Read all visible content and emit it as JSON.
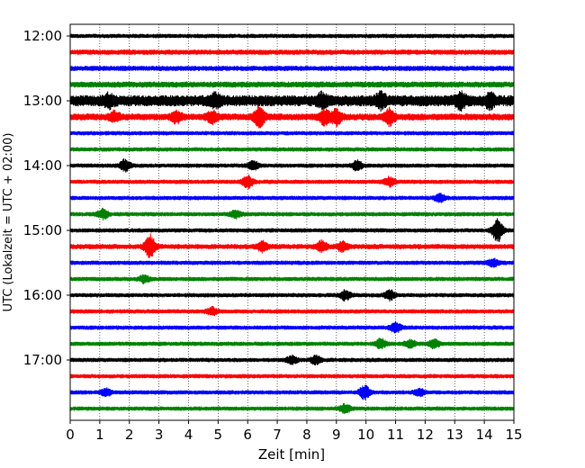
{
  "chart_data": {
    "type": "line",
    "subtype": "helicorder",
    "xlabel": "Zeit  [min]",
    "ylabel": "UTC (Lokalzeit = UTC + 02:00)",
    "xlim": [
      0,
      15
    ],
    "x_ticks": [
      "0",
      "1",
      "2",
      "3",
      "4",
      "5",
      "6",
      "7",
      "8",
      "9",
      "10",
      "11",
      "12",
      "13",
      "14",
      "15"
    ],
    "y_tick_labels": [
      "12:00",
      "13:00",
      "14:00",
      "15:00",
      "16:00",
      "17:00"
    ],
    "grid": "vertical dotted at each minute",
    "color_cycle": [
      "#000000",
      "#ff0000",
      "#0000ff",
      "#008000"
    ],
    "traces": [
      {
        "start": "12:00",
        "color": "#000000",
        "amp": 1.0,
        "events": []
      },
      {
        "start": "12:15",
        "color": "#ff0000",
        "amp": 1.2,
        "events": []
      },
      {
        "start": "12:30",
        "color": "#0000ff",
        "amp": 1.2,
        "events": []
      },
      {
        "start": "12:45",
        "color": "#008000",
        "amp": 1.4,
        "events": []
      },
      {
        "start": "13:00",
        "color": "#000000",
        "amp": 2.6,
        "events": [
          {
            "t": 1.3,
            "a": 2.0
          },
          {
            "t": 4.9,
            "a": 2.0
          },
          {
            "t": 8.5,
            "a": 2.2
          },
          {
            "t": 10.5,
            "a": 2.5
          },
          {
            "t": 13.2,
            "a": 2.6
          },
          {
            "t": 14.2,
            "a": 2.2
          }
        ]
      },
      {
        "start": "13:15",
        "color": "#ff0000",
        "amp": 1.6,
        "events": [
          {
            "t": 1.5,
            "a": 2.0
          },
          {
            "t": 3.6,
            "a": 2.2
          },
          {
            "t": 4.8,
            "a": 2.5
          },
          {
            "t": 6.4,
            "a": 4.0
          },
          {
            "t": 8.6,
            "a": 3.0
          },
          {
            "t": 9.0,
            "a": 3.0
          },
          {
            "t": 10.8,
            "a": 3.2
          }
        ]
      },
      {
        "start": "13:30",
        "color": "#0000ff",
        "amp": 1.0,
        "events": []
      },
      {
        "start": "13:45",
        "color": "#008000",
        "amp": 1.0,
        "events": []
      },
      {
        "start": "14:00",
        "color": "#000000",
        "amp": 1.0,
        "events": [
          {
            "t": 1.85,
            "a": 2.5
          },
          {
            "t": 6.2,
            "a": 2.0
          },
          {
            "t": 9.7,
            "a": 2.0
          }
        ]
      },
      {
        "start": "14:15",
        "color": "#ff0000",
        "amp": 1.0,
        "events": [
          {
            "t": 6.0,
            "a": 2.5
          },
          {
            "t": 10.8,
            "a": 2.0
          }
        ]
      },
      {
        "start": "14:30",
        "color": "#0000ff",
        "amp": 1.0,
        "events": [
          {
            "t": 12.5,
            "a": 1.8
          }
        ]
      },
      {
        "start": "14:45",
        "color": "#008000",
        "amp": 1.0,
        "events": [
          {
            "t": 1.1,
            "a": 2.0
          },
          {
            "t": 5.6,
            "a": 1.5
          }
        ]
      },
      {
        "start": "15:00",
        "color": "#000000",
        "amp": 1.0,
        "events": [
          {
            "t": 14.45,
            "a": 5.0
          }
        ]
      },
      {
        "start": "15:15",
        "color": "#ff0000",
        "amp": 1.2,
        "events": [
          {
            "t": 2.7,
            "a": 5.0
          },
          {
            "t": 6.5,
            "a": 2.0
          },
          {
            "t": 8.5,
            "a": 2.2
          },
          {
            "t": 9.2,
            "a": 2.0
          }
        ]
      },
      {
        "start": "15:30",
        "color": "#0000ff",
        "amp": 1.0,
        "events": [
          {
            "t": 14.3,
            "a": 1.5
          }
        ]
      },
      {
        "start": "15:45",
        "color": "#008000",
        "amp": 1.0,
        "events": [
          {
            "t": 2.5,
            "a": 1.5
          }
        ]
      },
      {
        "start": "16:00",
        "color": "#000000",
        "amp": 1.0,
        "events": [
          {
            "t": 9.3,
            "a": 2.0
          },
          {
            "t": 10.8,
            "a": 2.0
          }
        ]
      },
      {
        "start": "16:15",
        "color": "#ff0000",
        "amp": 1.0,
        "events": [
          {
            "t": 4.8,
            "a": 1.5
          }
        ]
      },
      {
        "start": "16:30",
        "color": "#0000ff",
        "amp": 1.0,
        "events": [
          {
            "t": 11.0,
            "a": 2.2
          }
        ]
      },
      {
        "start": "16:45",
        "color": "#008000",
        "amp": 1.0,
        "events": [
          {
            "t": 10.5,
            "a": 2.0
          },
          {
            "t": 11.5,
            "a": 1.5
          },
          {
            "t": 12.3,
            "a": 1.8
          }
        ]
      },
      {
        "start": "17:00",
        "color": "#000000",
        "amp": 1.0,
        "events": [
          {
            "t": 7.5,
            "a": 1.6
          },
          {
            "t": 8.3,
            "a": 1.6
          }
        ]
      },
      {
        "start": "17:15",
        "color": "#ff0000",
        "amp": 1.0,
        "events": []
      },
      {
        "start": "17:30",
        "color": "#0000ff",
        "amp": 1.0,
        "events": [
          {
            "t": 1.2,
            "a": 1.5
          },
          {
            "t": 9.95,
            "a": 3.0
          },
          {
            "t": 11.8,
            "a": 1.5
          }
        ]
      },
      {
        "start": "17:45",
        "color": "#008000",
        "amp": 1.0,
        "events": [
          {
            "t": 9.3,
            "a": 1.8
          }
        ]
      }
    ]
  }
}
